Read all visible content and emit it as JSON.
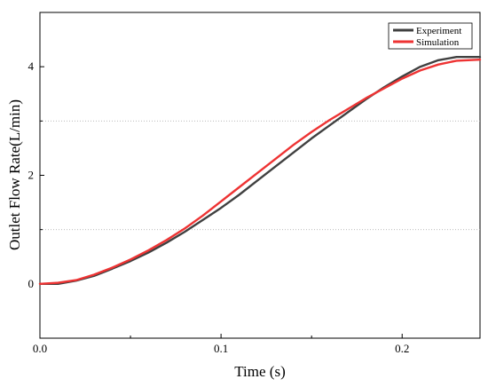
{
  "chart_data": {
    "type": "line",
    "title": "",
    "xlabel": "Time (s)",
    "ylabel": "Outlet Flow Rate(L/min)",
    "xlim": [
      0.0,
      0.243
    ],
    "ylim": [
      -1.0,
      5.0
    ],
    "xticks": [
      0.0,
      0.1,
      0.2
    ],
    "xtick_labels": [
      "0.0",
      "0.1",
      "0.2"
    ],
    "yticks": [
      0,
      2,
      4
    ],
    "ytick_labels": [
      "0",
      "2",
      "4"
    ],
    "grid": "horizontal dotted at 1 and 3",
    "legend_position": "top-right",
    "series": [
      {
        "name": "Experiment",
        "color": "#404040",
        "x": [
          0.0,
          0.01,
          0.02,
          0.03,
          0.04,
          0.05,
          0.06,
          0.07,
          0.08,
          0.09,
          0.1,
          0.11,
          0.12,
          0.13,
          0.14,
          0.15,
          0.16,
          0.17,
          0.18,
          0.19,
          0.2,
          0.21,
          0.22,
          0.23,
          0.243
        ],
        "y": [
          0.0,
          0.0,
          0.06,
          0.15,
          0.28,
          0.42,
          0.58,
          0.76,
          0.96,
          1.18,
          1.4,
          1.64,
          1.9,
          2.16,
          2.42,
          2.68,
          2.92,
          3.16,
          3.4,
          3.62,
          3.82,
          4.0,
          4.12,
          4.18,
          4.18
        ]
      },
      {
        "name": "Simulation",
        "color": "#ee3333",
        "x": [
          0.0,
          0.01,
          0.02,
          0.03,
          0.04,
          0.05,
          0.06,
          0.07,
          0.08,
          0.09,
          0.1,
          0.11,
          0.12,
          0.13,
          0.14,
          0.15,
          0.16,
          0.17,
          0.18,
          0.19,
          0.2,
          0.21,
          0.22,
          0.23,
          0.243
        ],
        "y": [
          0.0,
          0.02,
          0.07,
          0.17,
          0.3,
          0.45,
          0.62,
          0.81,
          1.02,
          1.26,
          1.52,
          1.78,
          2.04,
          2.3,
          2.56,
          2.8,
          3.02,
          3.22,
          3.42,
          3.6,
          3.78,
          3.93,
          4.04,
          4.11,
          4.13
        ]
      }
    ]
  }
}
